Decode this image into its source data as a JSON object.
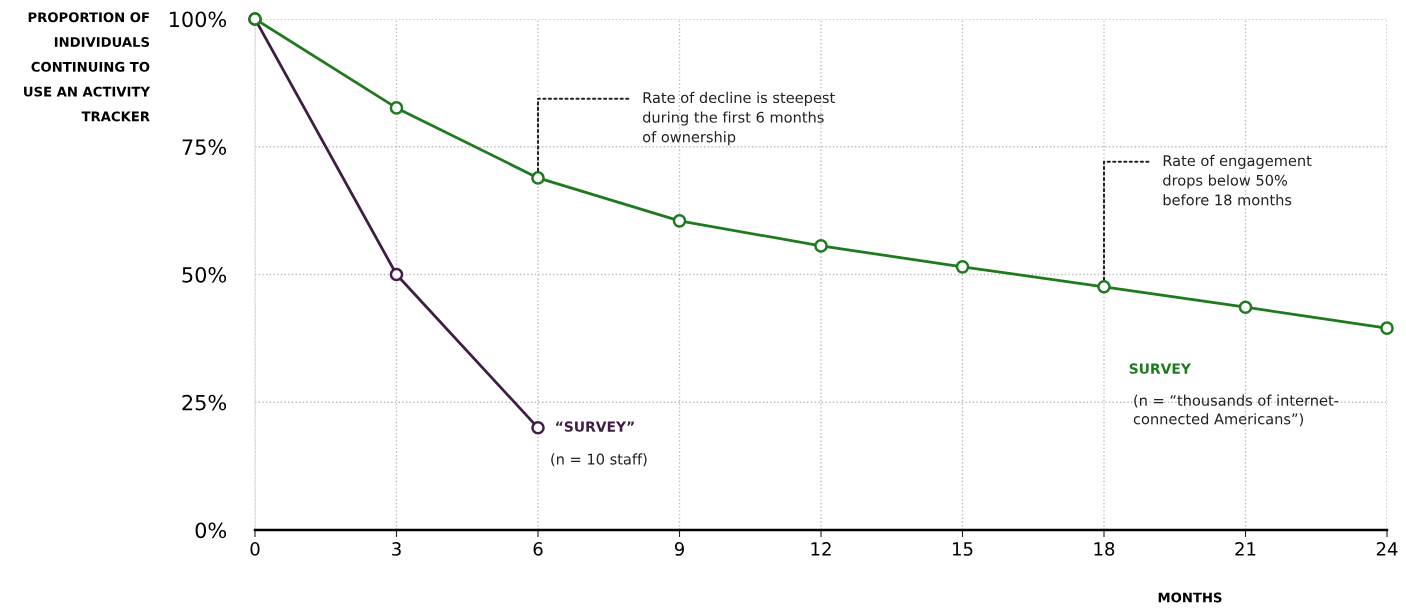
{
  "chart_data": {
    "type": "line",
    "x": [
      0,
      3,
      6,
      9,
      12,
      15,
      18,
      21,
      24
    ],
    "series": [
      {
        "name": "“SURVEY”",
        "color": "#3f1d45",
        "x": [
          0,
          3,
          6
        ],
        "values": [
          100,
          50,
          20
        ]
      },
      {
        "name": "SURVEY",
        "color": "#1f7a1f",
        "values": [
          100,
          82.6,
          68.9,
          60.5,
          55.6,
          51.5,
          47.6,
          43.6,
          39.5
        ]
      }
    ],
    "xlabel": "MONTHS",
    "ylabel": "PROPORTION OF\nINDIVIDUALS\nCONTINUING TO\nUSE AN ACTIVITY\nTRACKER",
    "xlim": [
      0,
      24
    ],
    "xticks": [
      0,
      3,
      6,
      9,
      12,
      15,
      18,
      21,
      24
    ],
    "ylim": [
      0,
      100
    ],
    "yticks": [
      {
        "value": 0,
        "label": "0%"
      },
      {
        "value": 25,
        "label": "25%"
      },
      {
        "value": 50,
        "label": "50%"
      },
      {
        "value": 75,
        "label": "75%"
      },
      {
        "value": 100,
        "label": "100%"
      }
    ],
    "annotations": [
      {
        "text": "Rate of decline is steepest\nduring the first 6 months\nof ownership",
        "x": 6,
        "y": 68.9
      },
      {
        "text": "Rate of engagement\ndrops below 50%\nbefore 18 months",
        "x": 18,
        "y": 47.6
      },
      "(n = 10 staff)",
      "(n = “thousands of internet-\nconnected Americans”)"
    ],
    "grid": true,
    "marker": "circle",
    "line_style": "solid",
    "legend": false
  }
}
